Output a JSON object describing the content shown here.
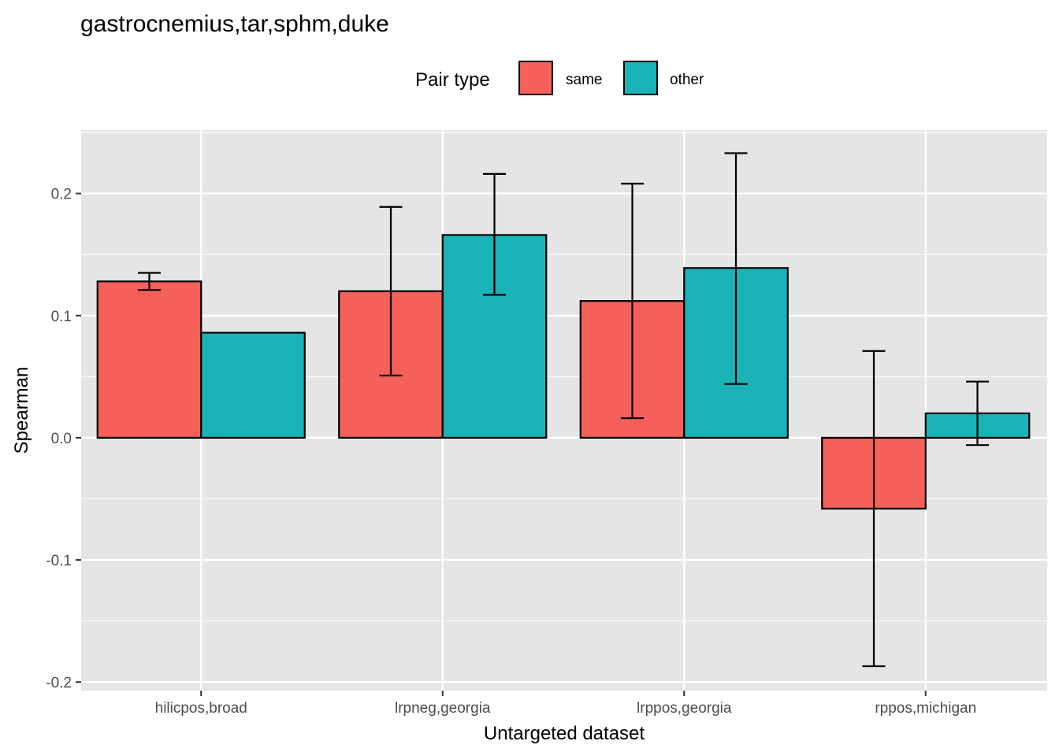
{
  "chart_data": {
    "type": "bar",
    "title": "gastrocnemius,tar,sphm,duke",
    "xlabel": "Untargeted dataset",
    "ylabel": "Spearman",
    "legend_title": "Pair type",
    "legend_placement": "top",
    "grid": true,
    "ylim": [
      -0.207,
      0.252
    ],
    "yticks": [
      -0.2,
      -0.1,
      0.0,
      0.1,
      0.2
    ],
    "ytick_labels": [
      "-0.2",
      "-0.1",
      "0.0",
      "0.1",
      "0.2"
    ],
    "categories": [
      "hilicpos,broad",
      "lrpneg,georgia",
      "lrppos,georgia",
      "rppos,michigan"
    ],
    "series": [
      {
        "name": "same",
        "color": "#F8766D",
        "values": [
          0.128,
          0.12,
          0.112,
          -0.058
        ],
        "err_low": [
          0.121,
          0.051,
          0.016,
          -0.187
        ],
        "err_high": [
          0.135,
          0.189,
          0.208,
          0.071
        ]
      },
      {
        "name": "other",
        "color": "#00BFC4",
        "values": [
          0.086,
          0.166,
          0.139,
          0.02
        ],
        "err_low": [
          null,
          0.117,
          0.044,
          -0.006
        ],
        "err_high": [
          null,
          0.216,
          0.233,
          0.046
        ]
      }
    ]
  },
  "colors": {
    "panel_bg": "#E5E5E5",
    "grid": "#FFFFFF",
    "bar_outline": "#000000",
    "fill_same": "#F5605A",
    "fill_other": "#1AB3B8"
  }
}
